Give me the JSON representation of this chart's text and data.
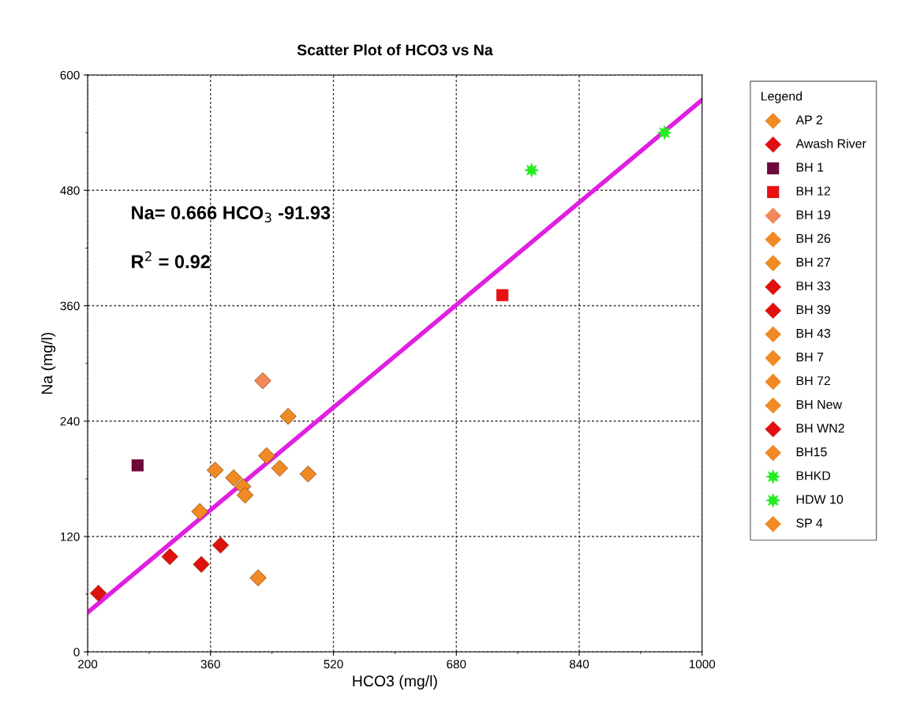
{
  "chart_data": {
    "type": "scatter",
    "title": "Scatter Plot of HCO3 vs Na",
    "xlabel": "HCO3 (mg/l)",
    "ylabel": "Na (mg/l)",
    "legend_title": "Legend",
    "xlim": [
      200,
      1000
    ],
    "xticks": [
      200,
      360,
      520,
      680,
      840,
      1000
    ],
    "ylim": [
      0,
      600
    ],
    "yticks": [
      0,
      120,
      240,
      360,
      480,
      600
    ],
    "grid": true,
    "legend": "right",
    "annotations": [
      {
        "text": "Na= 0.666 HCO$_{3}$ -91.93"
      },
      {
        "text": "R$^{2}$ = 0.92"
      }
    ],
    "series": [
      {
        "name": "AP 2",
        "color": "#f08a24",
        "marker": "diamond",
        "x": [
          346
        ],
        "values": [
          146
        ]
      },
      {
        "name": "Awash River",
        "color": "#e01010",
        "marker": "diamond",
        "x": [
          214
        ],
        "values": [
          61
        ]
      },
      {
        "name": "BH 1",
        "color": "#6e0a3a",
        "marker": "square",
        "x": [
          265
        ],
        "values": [
          194
        ]
      },
      {
        "name": "BH 12",
        "color": "#e81010",
        "marker": "square",
        "x": [
          740
        ],
        "values": [
          371
        ]
      },
      {
        "name": "BH 19",
        "color": "#f2875a",
        "marker": "diamond",
        "x": [
          428
        ],
        "values": [
          282
        ]
      },
      {
        "name": "BH 26",
        "color": "#f08a24",
        "marker": "diamond",
        "x": [
          366,
          422
        ],
        "values": [
          189,
          77
        ]
      },
      {
        "name": "BH 27",
        "color": "#f08a24",
        "marker": "diamond",
        "x": [
          390
        ],
        "values": [
          181
        ]
      },
      {
        "name": "BH 33",
        "color": "#e01010",
        "marker": "diamond",
        "x": [
          307
        ],
        "values": [
          99
        ]
      },
      {
        "name": "BH 39",
        "color": "#e01010",
        "marker": "diamond",
        "x": [
          348
        ],
        "values": [
          91
        ]
      },
      {
        "name": "BH 43",
        "color": "#f08a24",
        "marker": "diamond",
        "x": [
          402
        ],
        "values": [
          172
        ]
      },
      {
        "name": "BH 7",
        "color": "#f08a24",
        "marker": "diamond",
        "x": [
          405
        ],
        "values": [
          163
        ]
      },
      {
        "name": "BH 72",
        "color": "#f08a24",
        "marker": "diamond",
        "x": [
          433
        ],
        "values": [
          204
        ]
      },
      {
        "name": "BH New",
        "color": "#f08a24",
        "marker": "diamond",
        "x": [
          450
        ],
        "values": [
          191
        ]
      },
      {
        "name": "BH WN2",
        "color": "#e01010",
        "marker": "diamond",
        "x": [
          373
        ],
        "values": [
          111
        ]
      },
      {
        "name": "BH15",
        "color": "#f08a24",
        "marker": "diamond",
        "x": [
          461
        ],
        "values": [
          245
        ]
      },
      {
        "name": "BHKD",
        "color": "#22ee22",
        "marker": "star",
        "x": [
          778
        ],
        "values": [
          501
        ]
      },
      {
        "name": "HDW 10",
        "color": "#22ee22",
        "marker": "star",
        "x": [
          951
        ],
        "values": [
          540
        ]
      },
      {
        "name": "SP 4",
        "color": "#f08a24",
        "marker": "diamond",
        "x": [
          487
        ],
        "values": [
          185
        ]
      },
      {
        "type": "line",
        "color": "#e020e0",
        "line_style": "solid",
        "x": [
          200,
          1000
        ],
        "values": [
          41,
          574
        ]
      }
    ]
  }
}
